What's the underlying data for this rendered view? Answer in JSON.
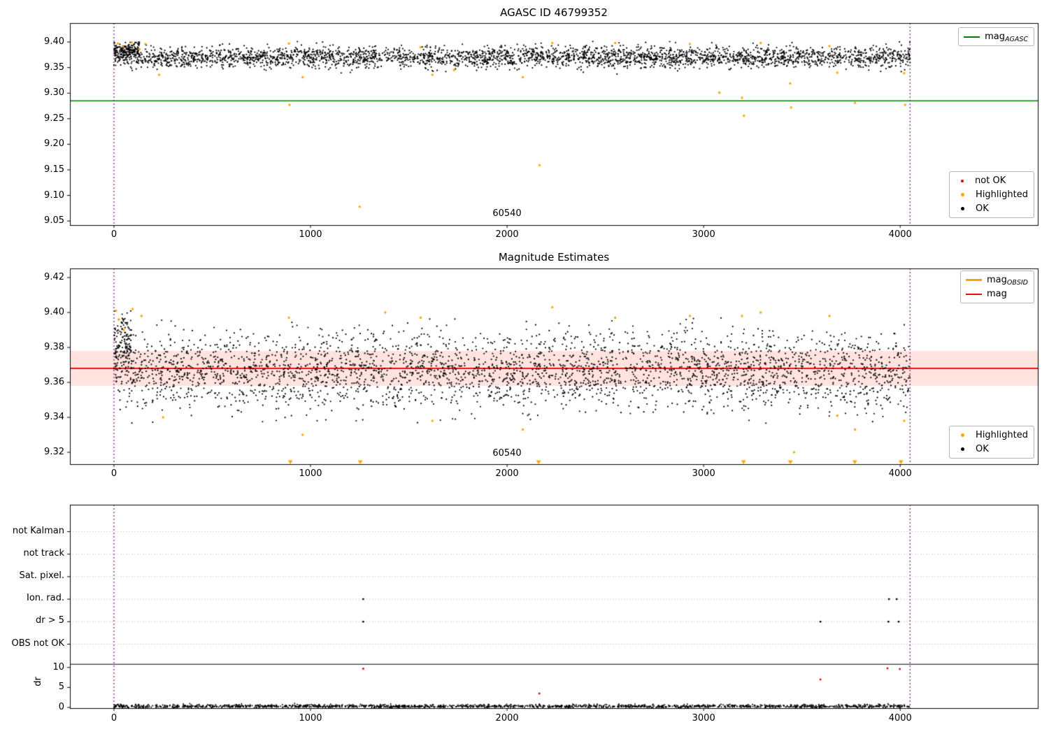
{
  "figure": {
    "obsid": "60540"
  },
  "colors": {
    "ok": "#000000",
    "highlighted": "#FFA500",
    "not_ok": "#FF0000",
    "agasc_line": "#007D00",
    "mag_line": "#EE1100",
    "obsid_line": "#FFA500",
    "band": "rgba(255,60,30,0.14)",
    "vline": "#7B0E7B",
    "grid": "#CCCCCC",
    "spine": "#000000"
  },
  "chart_data": [
    {
      "id": "agasc-mags",
      "type": "scatter",
      "title": "AGASC ID 46799352",
      "xlim": [
        -224,
        4700
      ],
      "ylim": [
        9.042,
        9.437
      ],
      "xticks": [
        0,
        1000,
        2000,
        3000,
        4000
      ],
      "xtick_labels": [
        "0",
        "1000",
        "2000",
        "3000",
        "4000"
      ],
      "yticks": [
        9.05,
        9.1,
        9.15,
        9.2,
        9.25,
        9.3,
        9.35,
        9.4
      ],
      "ytick_labels": [
        "9.05",
        "9.10",
        "9.15",
        "9.20",
        "9.25",
        "9.30",
        "9.35",
        "9.40"
      ],
      "agasc_mag_line": {
        "y": 9.285
      },
      "obsid_boundaries": [
        0,
        4050
      ],
      "obsid_annotation": {
        "text": "60540",
        "x": 2000
      },
      "cloud": {
        "n": 3200,
        "x_min": 0,
        "x_max": 4050,
        "y_mean": 9.37,
        "y_sd": 0.0105,
        "y_min": 9.337,
        "y_max": 9.401,
        "seed": 42
      },
      "start_cluster": {
        "n": 170,
        "x_min": 0,
        "x_max": 130,
        "y_mean": 9.384,
        "y_sd": 0.008,
        "y_min": 9.352,
        "y_max": 9.401,
        "seed": 77
      },
      "highlighted_points": [
        [
          20,
          9.397
        ],
        [
          45,
          9.392
        ],
        [
          90,
          9.399
        ],
        [
          130,
          9.386
        ],
        [
          160,
          9.396
        ],
        [
          230,
          9.336
        ],
        [
          890,
          9.397
        ],
        [
          893,
          9.277
        ],
        [
          960,
          9.331
        ],
        [
          1250,
          9.078
        ],
        [
          1560,
          9.39
        ],
        [
          1620,
          9.336
        ],
        [
          1730,
          9.345
        ],
        [
          2080,
          9.331
        ],
        [
          2165,
          9.159
        ],
        [
          2230,
          9.398
        ],
        [
          2550,
          9.398
        ],
        [
          2930,
          9.396
        ],
        [
          3080,
          9.301
        ],
        [
          3195,
          9.291
        ],
        [
          3205,
          9.256
        ],
        [
          3290,
          9.398
        ],
        [
          3440,
          9.319
        ],
        [
          3445,
          9.272
        ],
        [
          3640,
          9.392
        ],
        [
          3680,
          9.34
        ],
        [
          3770,
          9.281
        ],
        [
          4020,
          9.339
        ],
        [
          4025,
          9.277
        ]
      ],
      "legend_line": {
        "main": "mag",
        "sub": "AGASC"
      },
      "legend_markers": [
        {
          "label": "not OK",
          "color_key": "not_ok"
        },
        {
          "label": "Highlighted",
          "color_key": "highlighted"
        },
        {
          "label": "OK",
          "color_key": "ok"
        }
      ]
    },
    {
      "id": "obsid-mags",
      "type": "scatter",
      "title": "Magnitude Estimates",
      "xlim": [
        -224,
        4700
      ],
      "ylim": [
        9.3132,
        9.4252
      ],
      "xticks": [
        0,
        1000,
        2000,
        3000,
        4000
      ],
      "xtick_labels": [
        "0",
        "1000",
        "2000",
        "3000",
        "4000"
      ],
      "yticks": [
        9.32,
        9.34,
        9.36,
        9.38,
        9.4,
        9.42
      ],
      "ytick_labels": [
        "9.32",
        "9.34",
        "9.36",
        "9.38",
        "9.40",
        "9.42"
      ],
      "mag_line": {
        "y": 9.368
      },
      "mag_band": {
        "lo": 9.358,
        "hi": 9.378
      },
      "obsid_mag_line": {
        "y": 9.368,
        "x0": 0,
        "x1": 4050
      },
      "obsid_boundaries": [
        0,
        4050
      ],
      "obsid_annotation": {
        "text": "60540",
        "x": 2000
      },
      "cloud": {
        "n": 3200,
        "x_min": 0,
        "x_max": 4050,
        "y_mean": 9.366,
        "y_sd": 0.011,
        "y_min": 9.3365,
        "y_max": 9.3985,
        "seed": 13
      },
      "start_cluster": {
        "n": 140,
        "x_min": 0,
        "x_max": 90,
        "y_mean": 9.383,
        "y_sd": 0.009,
        "y_min": 9.35,
        "y_max": 9.401,
        "seed": 99
      },
      "highlighted_points": [
        [
          10,
          9.401
        ],
        [
          25,
          9.396
        ],
        [
          50,
          9.39
        ],
        [
          95,
          9.402
        ],
        [
          140,
          9.398
        ],
        [
          250,
          9.34
        ],
        [
          890,
          9.397
        ],
        [
          960,
          9.33
        ],
        [
          1380,
          9.4
        ],
        [
          1560,
          9.397
        ],
        [
          1620,
          9.338
        ],
        [
          2080,
          9.333
        ],
        [
          2230,
          9.403
        ],
        [
          2550,
          9.397
        ],
        [
          2930,
          9.398
        ],
        [
          3195,
          9.398
        ],
        [
          3290,
          9.4
        ],
        [
          3460,
          9.32
        ],
        [
          3640,
          9.398
        ],
        [
          3680,
          9.341
        ],
        [
          3770,
          9.333
        ],
        [
          4020,
          9.338
        ]
      ],
      "clipped_markers_x": [
        897,
        1253,
        2160,
        3203,
        3441,
        3769,
        4004
      ],
      "legend_lines": [
        {
          "main": "mag",
          "sub": "OBSID",
          "color_key": "obsid_line",
          "thick": true
        },
        {
          "main": "mag",
          "sub": "",
          "color_key": "mag_line",
          "thick": false
        }
      ],
      "legend_markers": [
        {
          "label": "Highlighted",
          "color_key": "highlighted"
        },
        {
          "label": "OK",
          "color_key": "ok"
        }
      ]
    },
    {
      "id": "flags",
      "type": "scatter",
      "xlim": [
        -224,
        4700
      ],
      "xticks": [
        0,
        1000,
        2000,
        3000,
        4000
      ],
      "xtick_labels": [
        "0",
        "1000",
        "2000",
        "3000",
        "4000"
      ],
      "categories": [
        "not Kalman",
        "not track",
        "Sat. pixel.",
        "Ion. rad.",
        "dr > 5",
        "OBS not OK"
      ],
      "dr_label": "dr",
      "dr_ticks": [
        10,
        5,
        0
      ],
      "dr_tick_labels": [
        "10",
        "5",
        "0"
      ],
      "separator_dr": 10.8,
      "obsid_boundaries": [
        0,
        4050
      ],
      "flag_points": {
        "ion_rad_x": [
          1268,
          3943,
          3982
        ],
        "dr_gt_5_x": [
          1268,
          3594,
          3940,
          3992
        ]
      },
      "not_ok_points": [
        [
          1268,
          9.7
        ],
        [
          2164,
          3.5
        ],
        [
          3594,
          7.0
        ],
        [
          3935,
          9.8
        ],
        [
          3998,
          9.6
        ]
      ],
      "dr_cloud": {
        "n": 1700,
        "x_min": 0,
        "x_max": 4050,
        "dr_mean": 0.3,
        "dr_sd": 0.22,
        "dr_max": 1.8,
        "seed": 7
      }
    }
  ]
}
